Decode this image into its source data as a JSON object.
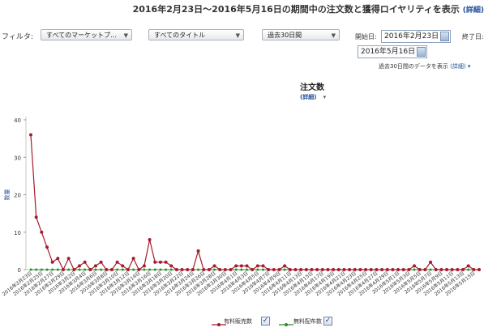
{
  "header": {
    "title": "2016年2月23日～2016年5月16日の期間中の注文数と獲得ロイヤリティを表示",
    "detail_link": "(詳細)"
  },
  "filters": {
    "label": "フィルタ:",
    "marketplace": "すべてのマーケットプ...",
    "title": "すべてのタイトル",
    "period": "過去30日間",
    "start_label": "開始日:",
    "start_date": "2016年2月23日",
    "end_label": "終了日:",
    "end_date": "2016年5月16日",
    "note": "過去30日間のデータを表示",
    "note_link": "(詳細)"
  },
  "chart_header": {
    "title": "注文数",
    "detail_link": "(詳細)"
  },
  "legend": {
    "paid": "有料販売数",
    "free": "無料配布数"
  },
  "colors": {
    "paid": "#a31c2c",
    "free": "#2f8a2f",
    "accent": "#1f4e9a"
  },
  "chart_data": {
    "type": "line",
    "title": "",
    "xlabel": "",
    "ylabel": "数量",
    "ylim": [
      0,
      40
    ],
    "yticks": [
      0,
      10,
      20,
      30,
      40
    ],
    "x": [
      "2016年2月23日",
      "2016年2月24日",
      "2016年2月25日",
      "2016年2月26日",
      "2016年2月27日",
      "2016年2月28日",
      "2016年2月29日",
      "2016年3月1日",
      "2016年3月2日",
      "2016年3月3日",
      "2016年3月4日",
      "2016年3月5日",
      "2016年3月6日",
      "2016年3月7日",
      "2016年3月8日",
      "2016年3月9日",
      "2016年3月10日",
      "2016年3月11日",
      "2016年3月12日",
      "2016年3月13日",
      "2016年3月14日",
      "2016年3月15日",
      "2016年3月16日",
      "2016年3月17日",
      "2016年3月18日",
      "2016年3月19日",
      "2016年3月20日",
      "2016年3月21日",
      "2016年3月22日",
      "2016年3月23日",
      "2016年3月24日",
      "2016年3月25日",
      "2016年3月26日",
      "2016年3月27日",
      "2016年3月28日",
      "2016年3月29日",
      "2016年3月30日",
      "2016年3月31日",
      "2016年4月1日",
      "2016年4月2日",
      "2016年4月3日",
      "2016年4月4日",
      "2016年4月5日",
      "2016年4月6日",
      "2016年4月7日",
      "2016年4月8日",
      "2016年4月9日",
      "2016年4月10日",
      "2016年4月11日",
      "2016年4月12日",
      "2016年4月13日",
      "2016年4月14日",
      "2016年4月15日",
      "2016年4月16日",
      "2016年4月17日",
      "2016年4月18日",
      "2016年4月19日",
      "2016年4月20日",
      "2016年4月21日",
      "2016年4月22日",
      "2016年4月23日",
      "2016年4月24日",
      "2016年4月25日",
      "2016年4月26日",
      "2016年4月27日",
      "2016年4月28日",
      "2016年4月29日",
      "2016年4月30日",
      "2016年5月1日",
      "2016年5月2日",
      "2016年5月3日",
      "2016年5月4日",
      "2016年5月5日",
      "2016年5月6日",
      "2016年5月7日",
      "2016年5月8日",
      "2016年5月9日",
      "2016年5月10日",
      "2016年5月11日",
      "2016年5月12日",
      "2016年5月13日",
      "2016年5月14日",
      "2016年5月15日",
      "2016年5月16日"
    ],
    "xtick_labels": [
      "2016年2月23日",
      "2016年2月25日",
      "2016年2月27日",
      "2016年2月29日",
      "2016年3月2日",
      "2016年3月4日",
      "2016年3月6日",
      "2016年3月8日",
      "2016年3月10日",
      "2016年3月12日",
      "2016年3月14日",
      "2016年3月16日",
      "2016年3月18日",
      "2016年3月20日",
      "2016年3月22日",
      "2016年3月24日",
      "2016年3月26日",
      "2016年3月28日",
      "2016年3月30日",
      "2016年4月1日",
      "2016年4月3日",
      "2016年4月5日",
      "2016年4月7日",
      "2016年4月9日",
      "2016年4月11日",
      "2016年4月13日",
      "2016年4月15日",
      "2016年4月17日",
      "2016年4月19日",
      "2016年4月21日",
      "2016年4月23日",
      "2016年4月25日",
      "2016年4月27日",
      "2016年4月29日",
      "2016年5月1日",
      "2016年5月3日",
      "2016年5月5日",
      "2016年5月7日",
      "2016年5月9日",
      "2016年5月11日",
      "2016年5月13日",
      "2016年5月15日"
    ],
    "series": [
      {
        "name": "有料販売数",
        "values": [
          36,
          14,
          10,
          6,
          2,
          3,
          0,
          3,
          0,
          1,
          2,
          0,
          1,
          2,
          0,
          0,
          2,
          1,
          0,
          3,
          0,
          1,
          8,
          2,
          2,
          2,
          1,
          0,
          0,
          0,
          0,
          5,
          0,
          0,
          1,
          0,
          0,
          0,
          1,
          1,
          1,
          0,
          1,
          1,
          0,
          0,
          0,
          1,
          0,
          0,
          0,
          0,
          0,
          0,
          0,
          0,
          0,
          0,
          0,
          0,
          0,
          0,
          0,
          0,
          0,
          0,
          0,
          0,
          0,
          0,
          0,
          1,
          0,
          0,
          2,
          0,
          0,
          0,
          0,
          0,
          0,
          1,
          0,
          0
        ]
      },
      {
        "name": "無料配布数",
        "values": [
          0,
          0,
          0,
          0,
          0,
          0,
          0,
          0,
          0,
          0,
          0,
          0,
          0,
          0,
          0,
          0,
          0,
          0,
          0,
          0,
          0,
          0,
          0,
          0,
          0,
          0,
          0,
          0,
          0,
          0,
          0,
          0,
          0,
          0,
          0,
          0,
          0,
          0,
          0,
          0,
          0,
          0,
          0,
          0,
          0,
          0,
          0,
          0,
          0,
          0,
          0,
          0,
          0,
          0,
          0,
          0,
          0,
          0,
          0,
          0,
          0,
          0,
          0,
          0,
          0,
          0,
          0,
          0,
          0,
          0,
          0,
          0,
          0,
          0,
          0,
          0,
          0,
          0,
          0,
          0,
          0,
          0,
          0,
          0
        ]
      }
    ],
    "grid": false,
    "legend_position": "bottom"
  }
}
